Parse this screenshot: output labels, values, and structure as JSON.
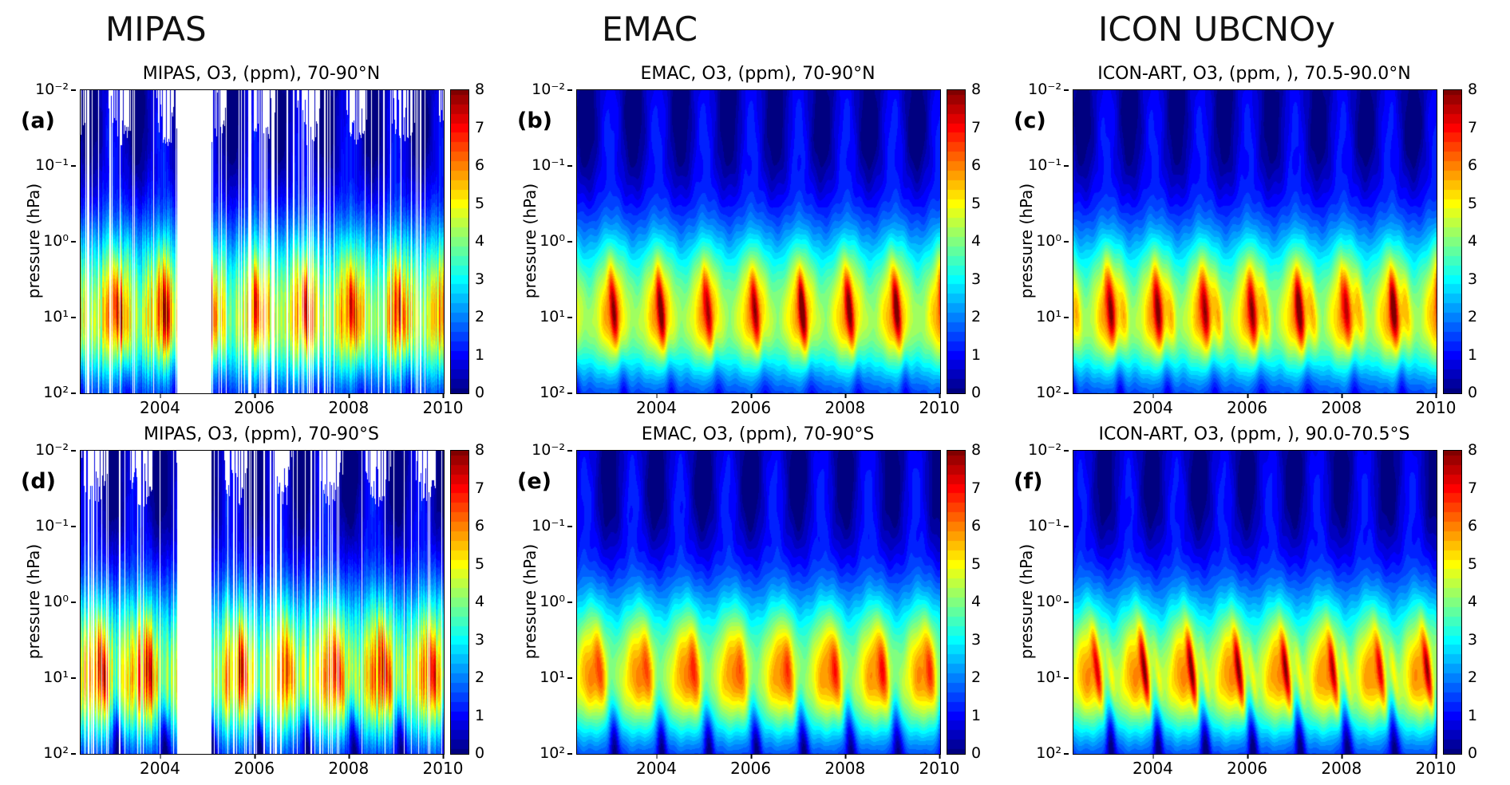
{
  "figure": {
    "columns": [
      {
        "header": "MIPAS"
      },
      {
        "header": "EMAC"
      },
      {
        "header": "ICON UBCNOy"
      }
    ]
  },
  "axes": {
    "ytick_labels": [
      "10⁻²",
      "10⁻¹",
      "10⁰",
      "10¹",
      "10²"
    ],
    "xtick_labels": [
      "2004",
      "2006",
      "2008",
      "2010"
    ],
    "xtick_years": [
      2004,
      2006,
      2008,
      2010
    ],
    "x_range": [
      2002.3,
      2010
    ],
    "colorbar_tick_labels": [
      "0",
      "1",
      "2",
      "3",
      "4",
      "5",
      "6",
      "7",
      "8"
    ],
    "colorbar_range": [
      0,
      8
    ]
  },
  "chart_data": [
    {
      "tag": "(a)",
      "title": "MIPAS, O3, (ppm), 70-90°N",
      "type": "heatmap",
      "source": "MIPAS",
      "species": "O3",
      "units": "ppm",
      "latitude_band": "70-90°N",
      "x": {
        "range": [
          2002.3,
          2010
        ],
        "ticks": [
          2004,
          2006,
          2008,
          2010
        ]
      },
      "y": {
        "label": "pressure (hPa)",
        "scale": "log10",
        "range_hPa": [
          0.01,
          100
        ]
      },
      "color": {
        "map": "jet",
        "range": [
          0,
          8
        ]
      },
      "pattern": {
        "summary": "Arctic O3: 4-6 ppm band near 2-30 hPa, winter-spring maxima reaching 7-8 ppm, <1 ppm above 0.1 hPa, 1-2.5 ppm near 100 hPa; white vertical stripes and a 2004-2005 block are missing MIPAS data",
        "hemisphere": "N",
        "has_data_gaps": true,
        "major_gap_years": [
          2004.35,
          2005.08
        ],
        "stripe_densities": [
          [
            2002.3,
            2003.5,
            0.2
          ],
          [
            2003.5,
            2004.35,
            0.05
          ],
          [
            2005.08,
            2005.6,
            0.1
          ],
          [
            2005.6,
            2007.7,
            0.25
          ],
          [
            2007.7,
            2008.6,
            0.07
          ],
          [
            2008.6,
            2009.8,
            0.13
          ],
          [
            2009.8,
            2010.0,
            0.05
          ]
        ],
        "seed": 11,
        "f_peak": 0.04,
        "f_streak": 0.02,
        "tilt": 0.12,
        "streak": 1.7,
        "streak2": 0,
        "sw": 0.065,
        "upper": 0.7,
        "f_dark": 0.5,
        "tongue": 0.7,
        "f_tongue": 0.2,
        "col_noise": 0.45,
        "f_white": 0.15
      }
    },
    {
      "tag": "(b)",
      "title": "EMAC, O3, (ppm), 70-90°N",
      "type": "heatmap",
      "source": "EMAC",
      "species": "O3",
      "units": "ppm",
      "latitude_band": "70-90°N",
      "x": {
        "range": [
          2002.3,
          2010
        ],
        "ticks": [
          2004,
          2006,
          2008,
          2010
        ]
      },
      "y": {
        "label": "pressure (hPa)",
        "scale": "log10",
        "range_hPa": [
          0.01,
          100
        ]
      },
      "color": {
        "map": "jet",
        "range": [
          0,
          8
        ]
      },
      "pattern": {
        "summary": "Model Arctic O3: smooth seasonal cycle, 4-6 ppm mid-stratospheric band with tilted winter maxima to 7-8 ppm, dark-blue seasonal lows above 0.1 hPa",
        "hemisphere": "N",
        "has_data_gaps": false,
        "seed": 22,
        "f_peak": 0.04,
        "f_streak": 0.0,
        "tilt": 0.13,
        "streak": 2.2,
        "streak2": 0,
        "sw": 0.055,
        "upper": 0.75,
        "f_dark": 0.5,
        "tongue": 0.8,
        "f_tongue": 0.2,
        "col_noise": 0,
        "f_white": 0
      }
    },
    {
      "tag": "(c)",
      "title": "ICON-ART, O3, (ppm, ), 70.5-90.0°N",
      "type": "heatmap",
      "source": "ICON-ART",
      "species": "O3",
      "units": "ppm",
      "latitude_band": "70.5-90.0°N",
      "x": {
        "range": [
          2002.3,
          2010
        ],
        "ticks": [
          2004,
          2006,
          2008,
          2010
        ]
      },
      "y": {
        "label": "pressure (hPa)",
        "scale": "log10",
        "range_hPa": [
          0.01,
          100
        ]
      },
      "color": {
        "map": "jet",
        "range": [
          0,
          8
        ]
      },
      "pattern": {
        "summary": "Model Arctic O3: broad 4-6 ppm band near 2-30 hPa with extended orange-red winter maxima up to 7-8 ppm each year",
        "hemisphere": "N",
        "has_data_gaps": false,
        "seed": 33,
        "f_peak": 0.05,
        "f_streak": 0.02,
        "tilt": 0.12,
        "streak": 2.4,
        "streak2": 1.0,
        "sw": 0.06,
        "upper": 0.7,
        "f_dark": 0.5,
        "tongue": 0.9,
        "f_tongue": 0.2,
        "col_noise": 0,
        "f_white": 0
      }
    },
    {
      "tag": "(d)",
      "title": "MIPAS, O3, (ppm), 70-90°S",
      "type": "heatmap",
      "source": "MIPAS",
      "species": "O3",
      "units": "ppm",
      "latitude_band": "70-90°S",
      "x": {
        "range": [
          2002.3,
          2010
        ],
        "ticks": [
          2004,
          2006,
          2008,
          2010
        ]
      },
      "y": {
        "label": "pressure (hPa)",
        "scale": "log10",
        "range_hPa": [
          0.01,
          100
        ]
      },
      "color": {
        "map": "jet",
        "range": [
          0,
          8
        ]
      },
      "pattern": {
        "summary": "Antarctic O3: spring maxima near 10 hPa (6-7 ppm), dark low-ozone tongues descending to 100 hPa each summer; white stripes and 2004-2005 block are MIPAS data gaps",
        "hemisphere": "S",
        "has_data_gaps": true,
        "major_gap_years": [
          2004.35,
          2005.08
        ],
        "stripe_densities": [
          [
            2002.3,
            2003.6,
            0.22
          ],
          [
            2003.6,
            2004.35,
            0.06
          ],
          [
            2005.08,
            2005.7,
            0.12
          ],
          [
            2005.7,
            2007.8,
            0.27
          ],
          [
            2007.8,
            2008.7,
            0.08
          ],
          [
            2008.7,
            2009.8,
            0.12
          ],
          [
            2009.8,
            2010.0,
            0.05
          ]
        ],
        "seed": 44,
        "f_peak": 0.62,
        "f_streak": 0.7,
        "tilt": 0.13,
        "streak": 1.5,
        "streak2": 0,
        "sw": 0.07,
        "upper": 0.7,
        "f_dark": 0.0,
        "tongue": 1.9,
        "f_tongue": 0.02,
        "col_noise": 0.45,
        "f_white": 0.6
      }
    },
    {
      "tag": "(e)",
      "title": "EMAC, O3, (ppm), 70-90°S",
      "type": "heatmap",
      "source": "EMAC",
      "species": "O3",
      "units": "ppm",
      "latitude_band": "70-90°S",
      "x": {
        "range": [
          2002.3,
          2010
        ],
        "ticks": [
          2004,
          2006,
          2008,
          2010
        ]
      },
      "y": {
        "label": "pressure (hPa)",
        "scale": "log10",
        "range_hPa": [
          0.01,
          100
        ]
      },
      "color": {
        "map": "jet",
        "range": [
          0,
          8
        ]
      },
      "pattern": {
        "summary": "Model Antarctic O3: smooth seasonal cycle, yellow-green 4-5 ppm band with spring enhancements and deep-blue descending vortex tongues near year boundaries",
        "hemisphere": "S",
        "has_data_gaps": false,
        "seed": 55,
        "f_peak": 0.6,
        "f_streak": 0.72,
        "tilt": 0.12,
        "streak": 1.3,
        "streak2": 0,
        "sw": 0.07,
        "upper": 0.75,
        "f_dark": 0.98,
        "tongue": 1.8,
        "f_tongue": 0.03,
        "col_noise": 0,
        "f_white": 0
      }
    },
    {
      "tag": "(f)",
      "title": "ICON-ART, O3, (ppm, ), 90.0-70.5°S",
      "type": "heatmap",
      "source": "ICON-ART",
      "species": "O3",
      "units": "ppm",
      "latitude_band": "90.0-70.5°S",
      "x": {
        "range": [
          2002.3,
          2010
        ],
        "ticks": [
          2004,
          2006,
          2008,
          2010
        ]
      },
      "y": {
        "label": "pressure (hPa)",
        "scale": "log10",
        "range_hPa": [
          0.01,
          100
        ]
      },
      "color": {
        "map": "jet",
        "range": [
          0,
          8
        ]
      },
      "pattern": {
        "summary": "Model Antarctic O3: narrow strongly tilted orange-red spring maxima (6-8 ppm) near 3-30 hPa, dark descending low-ozone tongues to 100 hPa each year",
        "hemisphere": "S",
        "has_data_gaps": false,
        "seed": 66,
        "f_peak": 0.62,
        "f_streak": 0.7,
        "tilt": 0.18,
        "streak": 2.3,
        "streak2": 0.9,
        "sw": 0.05,
        "upper": 0.7,
        "f_dark": 0.97,
        "tongue": 2.0,
        "f_tongue": 0.03,
        "col_noise": 0,
        "f_white": 0
      }
    }
  ]
}
